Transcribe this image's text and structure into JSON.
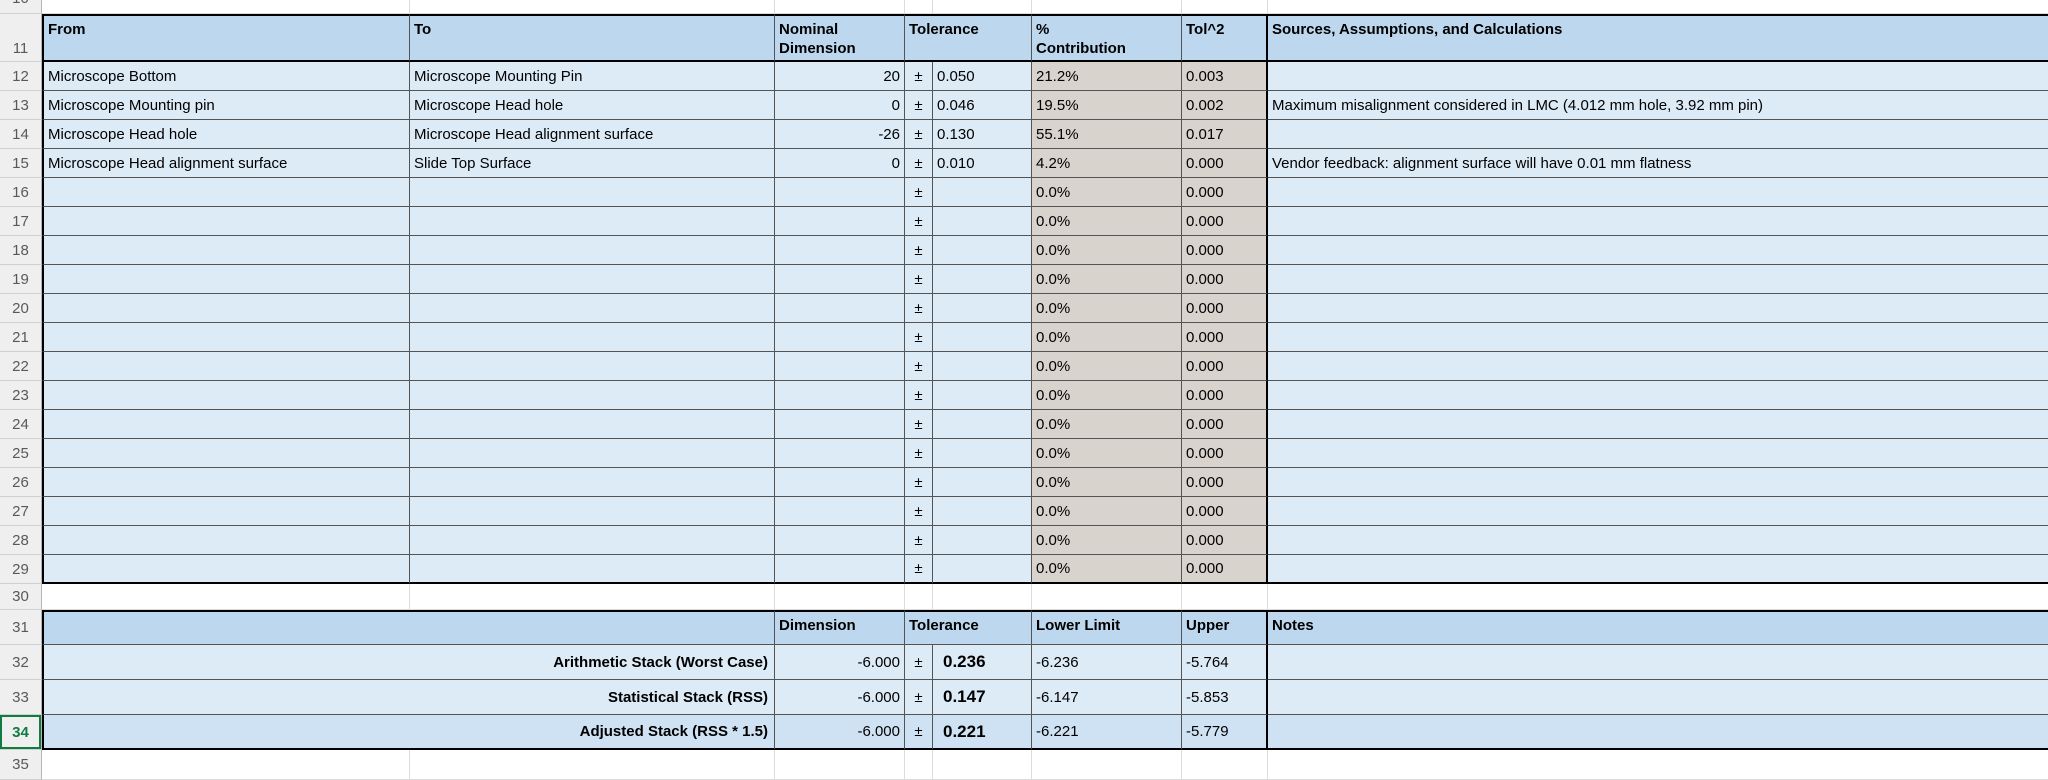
{
  "active_row": "34",
  "colors": {
    "header_fill": "#BDD7EE",
    "row_fill": "#DDEBF7",
    "computed_fill": "#D8D3CC",
    "summary_shaded_fill": "#CFE2F3",
    "selection_green": "#107C41"
  },
  "top_partial_row_number": "10",
  "bottom_partial_row_number": "35",
  "spacer_row_number": "30",
  "main_table": {
    "header_row_number": "11",
    "headers": {
      "from": "From",
      "to": "To",
      "nominal": "Nominal\nDimension",
      "tolerance": "Tolerance",
      "contribution": "%\nContribution",
      "tol2": "Tol^2",
      "sources": "Sources, Assumptions, and Calculations"
    },
    "rows": [
      {
        "row": "12",
        "from": "Microscope Bottom",
        "to": "Microscope Mounting Pin",
        "nominal": "20",
        "pm": "±",
        "tol": "0.050",
        "contrib": "21.2%",
        "tol2": "0.003",
        "src": ""
      },
      {
        "row": "13",
        "from": "Microscope Mounting pin",
        "to": "Microscope Head hole",
        "nominal": "0",
        "pm": "±",
        "tol": "0.046",
        "contrib": "19.5%",
        "tol2": "0.002",
        "src": "Maximum misalignment considered in LMC (4.012 mm hole, 3.92 mm pin)"
      },
      {
        "row": "14",
        "from": "Microscope Head hole",
        "to": "Microscope Head alignment surface",
        "nominal": "-26",
        "pm": "±",
        "tol": "0.130",
        "contrib": "55.1%",
        "tol2": "0.017",
        "src": ""
      },
      {
        "row": "15",
        "from": "Microscope Head alignment surface",
        "to": "Slide Top Surface",
        "nominal": "0",
        "pm": "±",
        "tol": "0.010",
        "contrib": "4.2%",
        "tol2": "0.000",
        "src": "Vendor feedback: alignment surface will have 0.01 mm flatness"
      },
      {
        "row": "16",
        "from": "",
        "to": "",
        "nominal": "",
        "pm": "±",
        "tol": "",
        "contrib": "0.0%",
        "tol2": "0.000",
        "src": ""
      },
      {
        "row": "17",
        "from": "",
        "to": "",
        "nominal": "",
        "pm": "±",
        "tol": "",
        "contrib": "0.0%",
        "tol2": "0.000",
        "src": ""
      },
      {
        "row": "18",
        "from": "",
        "to": "",
        "nominal": "",
        "pm": "±",
        "tol": "",
        "contrib": "0.0%",
        "tol2": "0.000",
        "src": ""
      },
      {
        "row": "19",
        "from": "",
        "to": "",
        "nominal": "",
        "pm": "±",
        "tol": "",
        "contrib": "0.0%",
        "tol2": "0.000",
        "src": ""
      },
      {
        "row": "20",
        "from": "",
        "to": "",
        "nominal": "",
        "pm": "±",
        "tol": "",
        "contrib": "0.0%",
        "tol2": "0.000",
        "src": ""
      },
      {
        "row": "21",
        "from": "",
        "to": "",
        "nominal": "",
        "pm": "±",
        "tol": "",
        "contrib": "0.0%",
        "tol2": "0.000",
        "src": ""
      },
      {
        "row": "22",
        "from": "",
        "to": "",
        "nominal": "",
        "pm": "±",
        "tol": "",
        "contrib": "0.0%",
        "tol2": "0.000",
        "src": ""
      },
      {
        "row": "23",
        "from": "",
        "to": "",
        "nominal": "",
        "pm": "±",
        "tol": "",
        "contrib": "0.0%",
        "tol2": "0.000",
        "src": ""
      },
      {
        "row": "24",
        "from": "",
        "to": "",
        "nominal": "",
        "pm": "±",
        "tol": "",
        "contrib": "0.0%",
        "tol2": "0.000",
        "src": ""
      },
      {
        "row": "25",
        "from": "",
        "to": "",
        "nominal": "",
        "pm": "±",
        "tol": "",
        "contrib": "0.0%",
        "tol2": "0.000",
        "src": ""
      },
      {
        "row": "26",
        "from": "",
        "to": "",
        "nominal": "",
        "pm": "±",
        "tol": "",
        "contrib": "0.0%",
        "tol2": "0.000",
        "src": ""
      },
      {
        "row": "27",
        "from": "",
        "to": "",
        "nominal": "",
        "pm": "±",
        "tol": "",
        "contrib": "0.0%",
        "tol2": "0.000",
        "src": ""
      },
      {
        "row": "28",
        "from": "",
        "to": "",
        "nominal": "",
        "pm": "±",
        "tol": "",
        "contrib": "0.0%",
        "tol2": "0.000",
        "src": ""
      },
      {
        "row": "29",
        "from": "",
        "to": "",
        "nominal": "",
        "pm": "±",
        "tol": "",
        "contrib": "0.0%",
        "tol2": "0.000",
        "src": ""
      }
    ]
  },
  "summary_table": {
    "header_row_number": "31",
    "headers": {
      "dimension": "Dimension",
      "tolerance": "Tolerance",
      "lower": "Lower Limit",
      "upper": "Upper",
      "notes": "Notes"
    },
    "rows": [
      {
        "row": "32",
        "label": "Arithmetic Stack (Worst Case)",
        "dimension": "-6.000",
        "pm": "±",
        "tol": "0.236",
        "lower": "-6.236",
        "upper": "-5.764",
        "notes": "",
        "shaded": false
      },
      {
        "row": "33",
        "label": "Statistical Stack (RSS)",
        "dimension": "-6.000",
        "pm": "±",
        "tol": "0.147",
        "lower": "-6.147",
        "upper": "-5.853",
        "notes": "",
        "shaded": false
      },
      {
        "row": "34",
        "label": "Adjusted Stack (RSS * 1.5)",
        "dimension": "-6.000",
        "pm": "±",
        "tol": "0.221",
        "lower": "-6.221",
        "upper": "-5.779",
        "notes": "",
        "shaded": true
      }
    ]
  }
}
